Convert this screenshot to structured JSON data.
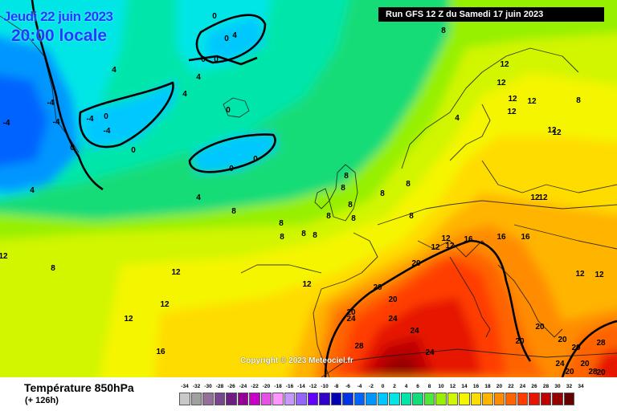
{
  "header": {
    "date": "Jeudi 22 juin 2023",
    "time": "20:00 locale",
    "run": "Run GFS 12 Z du Samedi 17 juin 2023"
  },
  "copyright": "Copyright © 2023 Meteociel.fr",
  "footer": {
    "title": "Température 850hPa",
    "subtitle": "(+ 126h)"
  },
  "legend": [
    {
      "value": "-34",
      "color": "#c8c8c8"
    },
    {
      "value": "-32",
      "color": "#a0a0a0"
    },
    {
      "value": "-30",
      "color": "#966e9b"
    },
    {
      "value": "-28",
      "color": "#78468c"
    },
    {
      "value": "-26",
      "color": "#6e1e82"
    },
    {
      "value": "-24",
      "color": "#960096"
    },
    {
      "value": "-22",
      "color": "#c800c8"
    },
    {
      "value": "-20",
      "color": "#e650e6"
    },
    {
      "value": "-18",
      "color": "#ff96ff"
    },
    {
      "value": "-16",
      "color": "#c896ff"
    },
    {
      "value": "-14",
      "color": "#9664ff"
    },
    {
      "value": "-12",
      "color": "#6400ff"
    },
    {
      "value": "-10",
      "color": "#3200c8"
    },
    {
      "value": "-8",
      "color": "#0000b4"
    },
    {
      "value": "-6",
      "color": "#0032e6"
    },
    {
      "value": "-4",
      "color": "#0064ff"
    },
    {
      "value": "-2",
      "color": "#0096ff"
    },
    {
      "value": "0",
      "color": "#00c8ff"
    },
    {
      "value": "2",
      "color": "#00e6e6"
    },
    {
      "value": "4",
      "color": "#00e6aa"
    },
    {
      "value": "6",
      "color": "#14dc78"
    },
    {
      "value": "8",
      "color": "#50e63c"
    },
    {
      "value": "10",
      "color": "#96f000"
    },
    {
      "value": "12",
      "color": "#d2f500"
    },
    {
      "value": "14",
      "color": "#f5f500"
    },
    {
      "value": "16",
      "color": "#ffdc00"
    },
    {
      "value": "18",
      "color": "#ffb400"
    },
    {
      "value": "20",
      "color": "#ff8c00"
    },
    {
      "value": "22",
      "color": "#ff6400"
    },
    {
      "value": "24",
      "color": "#ff3c00"
    },
    {
      "value": "26",
      "color": "#e61400"
    },
    {
      "value": "28",
      "color": "#be0000"
    },
    {
      "value": "30",
      "color": "#960000"
    },
    {
      "value": "32",
      "color": "#640000"
    },
    {
      "value": "34",
      "color": "#280000"
    }
  ],
  "isotherm_labels": [
    "0",
    "0",
    "0",
    "0",
    "0",
    "0",
    "0",
    "0",
    "0",
    "0",
    "-4",
    "-4",
    "-4",
    "-4",
    "-4",
    "4",
    "4",
    "4",
    "4",
    "4",
    "4",
    "4",
    "8",
    "8",
    "8",
    "8",
    "8",
    "8",
    "8",
    "8",
    "8",
    "8",
    "8",
    "8",
    "8",
    "8",
    "8",
    "8",
    "12",
    "12",
    "12",
    "12",
    "12",
    "12",
    "12",
    "12",
    "12",
    "12",
    "12",
    "12",
    "12",
    "12",
    "12",
    "12",
    "12",
    "12",
    "12",
    "16",
    "16",
    "16",
    "16",
    "20",
    "20",
    "20",
    "20",
    "20",
    "20",
    "20",
    "20",
    "20",
    "20",
    "20",
    "24",
    "24",
    "24",
    "24",
    "24",
    "28",
    "28",
    "28",
    "28"
  ]
}
